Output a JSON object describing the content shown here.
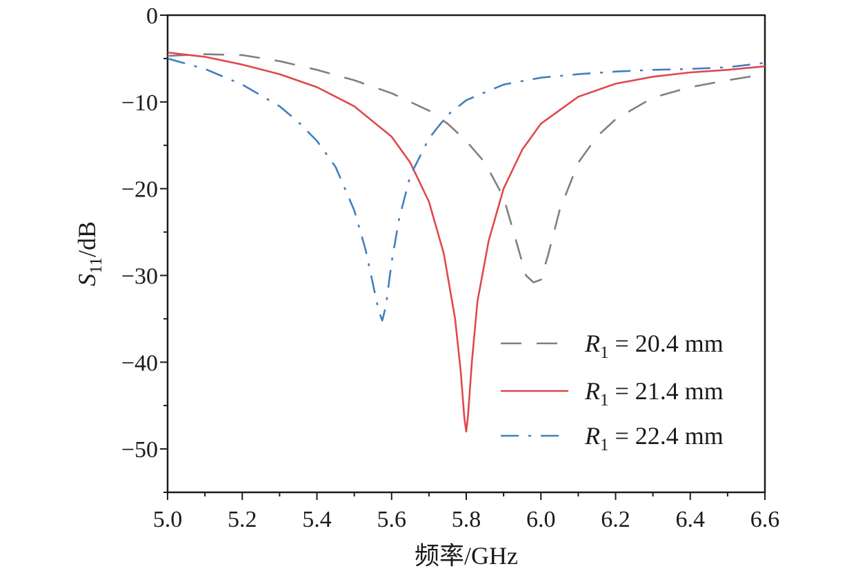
{
  "chart_data": {
    "type": "line",
    "xlabel": "频率/GHz",
    "ylabel": {
      "main": "S",
      "sub": "11",
      "unit": "/dB"
    },
    "xlim": [
      5.0,
      6.6
    ],
    "ylim": [
      -55,
      0
    ],
    "xticks": [
      5.0,
      5.2,
      5.4,
      5.6,
      5.8,
      6.0,
      6.2,
      6.4,
      6.6
    ],
    "xtick_labels": [
      "5.0",
      "5.2",
      "5.4",
      "5.6",
      "5.8",
      "6.0",
      "6.2",
      "6.4",
      "6.6"
    ],
    "yticks": [
      0,
      -10,
      -20,
      -30,
      -40,
      -50
    ],
    "ytick_labels": [
      "0",
      "−10",
      "−20",
      "−30",
      "−40",
      "−50"
    ],
    "grid": false,
    "legend_position": "bottom-right",
    "series": [
      {
        "name": "R1 = 20.4 mm",
        "legend": {
          "var": "R",
          "sub": "1",
          "text": " = 20.4 mm"
        },
        "color": "#7f7f7f",
        "style": "dashed",
        "x": [
          5.0,
          5.1,
          5.2,
          5.3,
          5.4,
          5.5,
          5.6,
          5.7,
          5.75,
          5.8,
          5.85,
          5.9,
          5.93,
          5.96,
          5.98,
          6.0,
          6.02,
          6.05,
          6.1,
          6.15,
          6.2,
          6.3,
          6.4,
          6.5,
          6.6
        ],
        "y": [
          -4.7,
          -4.5,
          -4.6,
          -5.3,
          -6.3,
          -7.5,
          -9.0,
          -11.0,
          -12.5,
          -14.5,
          -17.0,
          -21.0,
          -25.5,
          -30.0,
          -30.8,
          -30.5,
          -27.5,
          -22.5,
          -17.0,
          -14.0,
          -12.0,
          -9.5,
          -8.3,
          -7.5,
          -6.8
        ]
      },
      {
        "name": "R1 = 21.4 mm",
        "legend": {
          "var": "R",
          "sub": "1",
          "text": " = 21.4 mm"
        },
        "color": "#e0474c",
        "style": "solid",
        "x": [
          5.0,
          5.1,
          5.2,
          5.3,
          5.4,
          5.5,
          5.6,
          5.65,
          5.7,
          5.74,
          5.77,
          5.785,
          5.795,
          5.8,
          5.805,
          5.815,
          5.83,
          5.86,
          5.9,
          5.95,
          6.0,
          6.1,
          6.2,
          6.3,
          6.4,
          6.5,
          6.6
        ],
        "y": [
          -4.3,
          -4.8,
          -5.7,
          -6.8,
          -8.3,
          -10.5,
          -14.0,
          -17.0,
          -21.5,
          -27.5,
          -35.0,
          -41.0,
          -46.5,
          -48.0,
          -46.0,
          -40.0,
          -33.0,
          -26.0,
          -20.0,
          -15.5,
          -12.5,
          -9.4,
          -7.9,
          -7.1,
          -6.6,
          -6.3,
          -5.9
        ]
      },
      {
        "name": "R1 = 22.4 mm",
        "legend": {
          "var": "R",
          "sub": "1",
          "text": " = 22.4 mm"
        },
        "color": "#3f7fbf",
        "style": "dashdot",
        "x": [
          5.0,
          5.1,
          5.2,
          5.3,
          5.35,
          5.4,
          5.45,
          5.5,
          5.53,
          5.55,
          5.565,
          5.575,
          5.585,
          5.6,
          5.62,
          5.65,
          5.7,
          5.75,
          5.8,
          5.9,
          6.0,
          6.1,
          6.2,
          6.3,
          6.4,
          6.5,
          6.6
        ],
        "y": [
          -5.0,
          -6.2,
          -8.0,
          -10.5,
          -12.3,
          -14.5,
          -17.5,
          -22.5,
          -27.0,
          -31.0,
          -34.0,
          -35.2,
          -33.5,
          -28.5,
          -23.5,
          -18.5,
          -14.2,
          -11.5,
          -9.8,
          -8.0,
          -7.2,
          -6.8,
          -6.5,
          -6.3,
          -6.2,
          -6.0,
          -5.5
        ]
      }
    ]
  }
}
